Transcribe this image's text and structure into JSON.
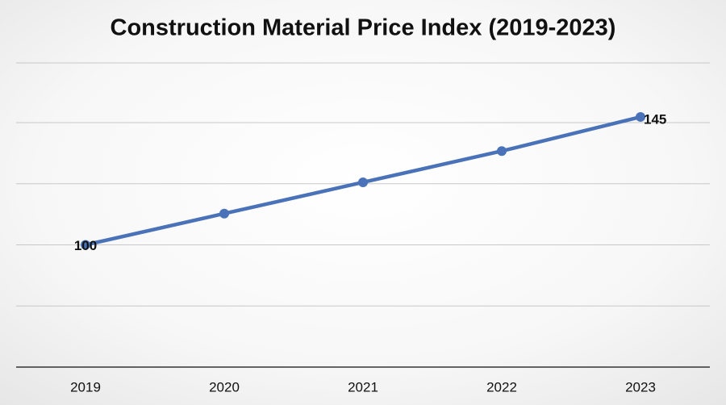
{
  "chart_data": {
    "type": "line",
    "title": "Construction Material Price Index (2019-2023)",
    "categories": [
      "2019",
      "2020",
      "2021",
      "2022",
      "2023"
    ],
    "values": [
      100,
      111,
      122,
      133,
      145
    ],
    "value_labels": [
      "100",
      null,
      null,
      null,
      "145"
    ],
    "color": "#4a72b8",
    "ylim": [
      57,
      164
    ],
    "yticks": [
      78.5,
      100,
      121.5,
      143,
      164
    ],
    "ytick_labels": false,
    "grid": true
  }
}
